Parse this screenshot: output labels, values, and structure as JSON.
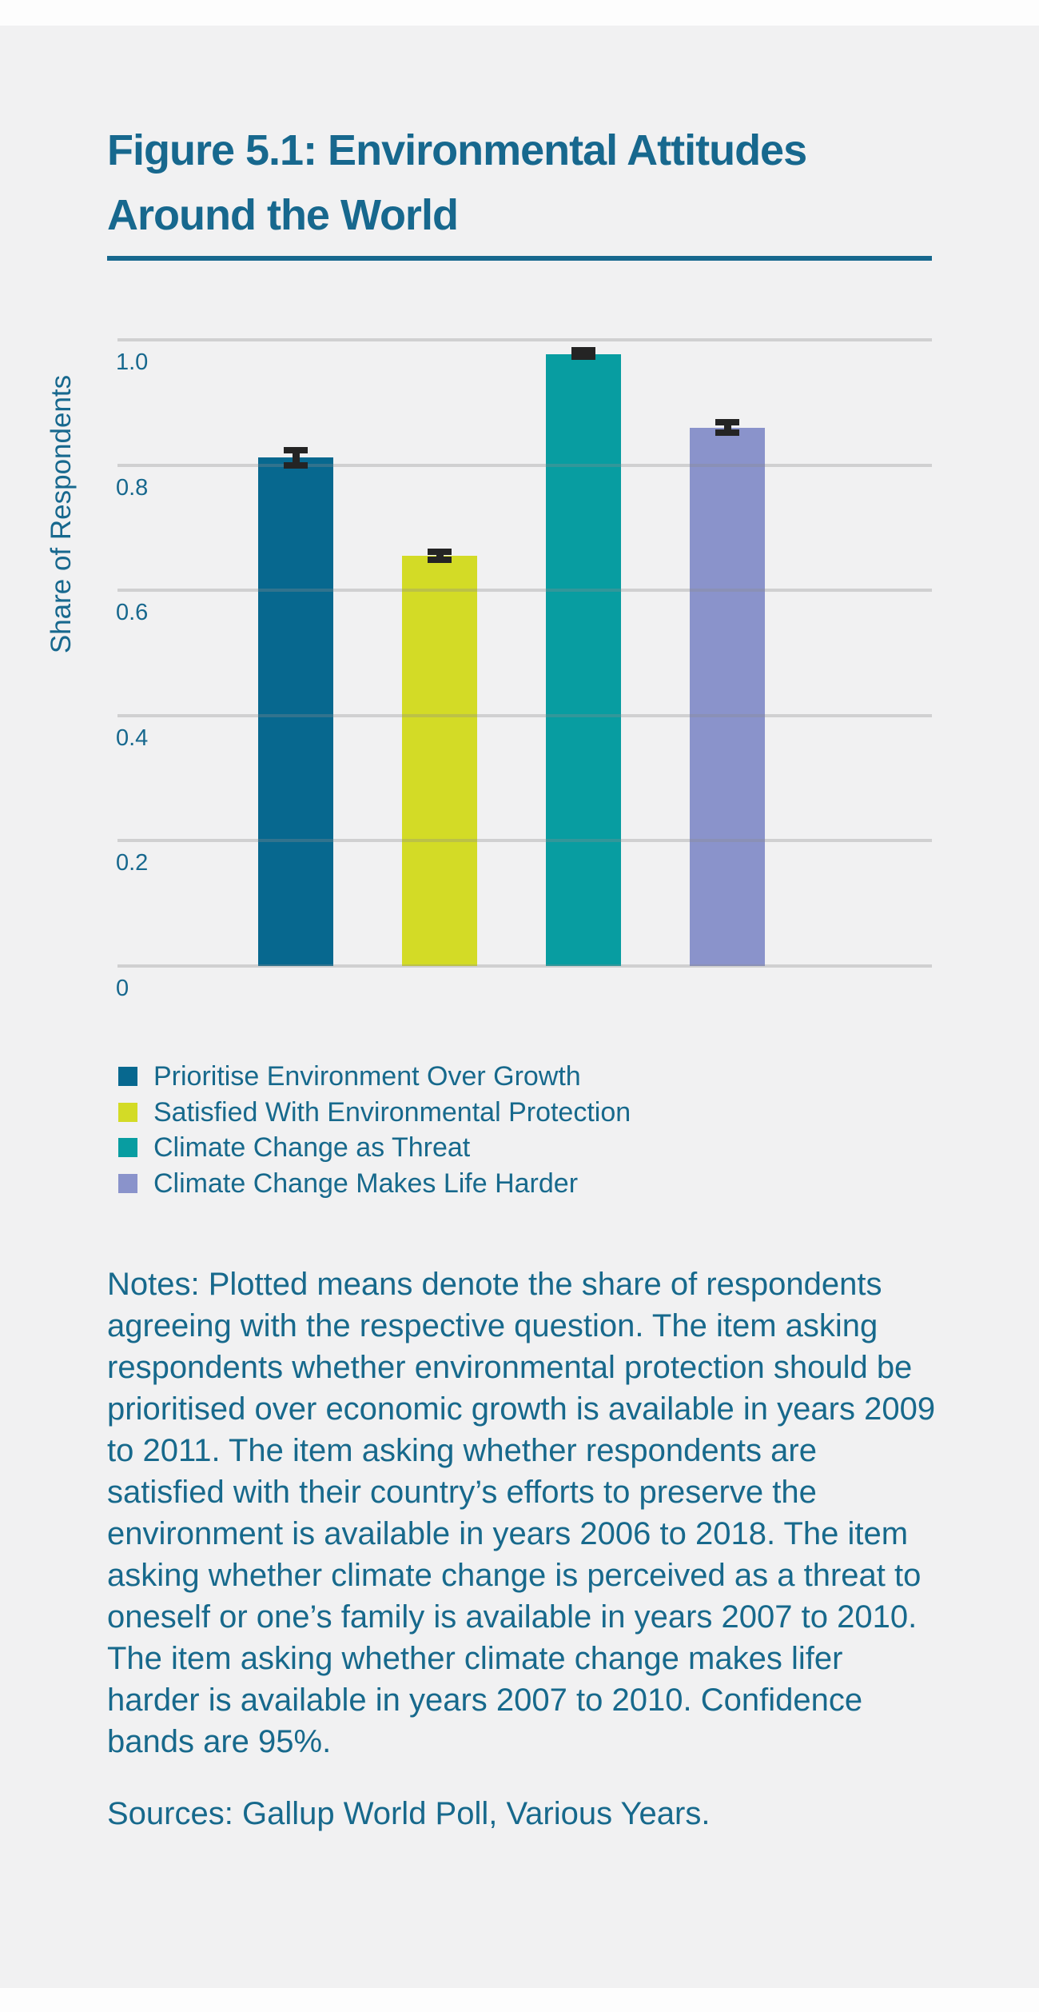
{
  "figure": {
    "title_lines": [
      "Figure 5.1: Environmental Attitudes",
      "Around the World"
    ],
    "notes": "Notes: Plotted means denote the share of respondents agreeing with the respective question. The item asking respondents whether environmental protection should be prioritised over economic growth is available in years 2009 to 2011. The item asking whether respondents are satisfied with their country’s efforts to preserve the environment is available in years 2006 to 2018. The item asking whether climate change is perceived as a threat to oneself or one’s family is available in years 2007 to 2010. The item asking whether climate change makes lifer harder is available in years 2007 to 2010. Confidence bands are 95%.",
    "sources": "Sources: Gallup World Poll, Various Years."
  },
  "chart_data": {
    "type": "bar",
    "title": "",
    "xlabel": "",
    "ylabel": "Share of Respondents",
    "ylim": [
      0,
      1.05
    ],
    "yticks": [
      0,
      0.2,
      0.4,
      0.6,
      0.8,
      1.0
    ],
    "ytick_labels": [
      "0",
      "0.2",
      "0.4",
      "0.6",
      "0.8",
      "1.0"
    ],
    "grid": true,
    "legend_position": "bottom-left",
    "error_bars": "95% confidence bands",
    "categories": [
      "Prioritise Environment Over Growth",
      "Satisfied With Environmental Protection",
      "Climate Change as Threat",
      "Climate Change Makes Life Harder"
    ],
    "series": [
      {
        "name": "Prioritise Environment Over Growth",
        "value": 0.812,
        "ci_low": 0.8,
        "ci_high": 0.824,
        "color": "#07688f"
      },
      {
        "name": "Satisfied With Environmental Protection",
        "value": 0.655,
        "ci_low": 0.649,
        "ci_high": 0.661,
        "color": "#d3db26"
      },
      {
        "name": "Climate Change as Threat",
        "value": 0.977,
        "ci_low": 0.973,
        "ci_high": 0.983,
        "color": "#089da1"
      },
      {
        "name": "Climate Change Makes Life Harder",
        "value": 0.86,
        "ci_low": 0.852,
        "ci_high": 0.868,
        "color": "#8a93cb"
      }
    ]
  },
  "colors": {
    "text_accent": "#17698c",
    "title": "#17688e",
    "background": "#f1f1f2",
    "gridline": "#cfcfcf",
    "error_bar": "#242424"
  }
}
